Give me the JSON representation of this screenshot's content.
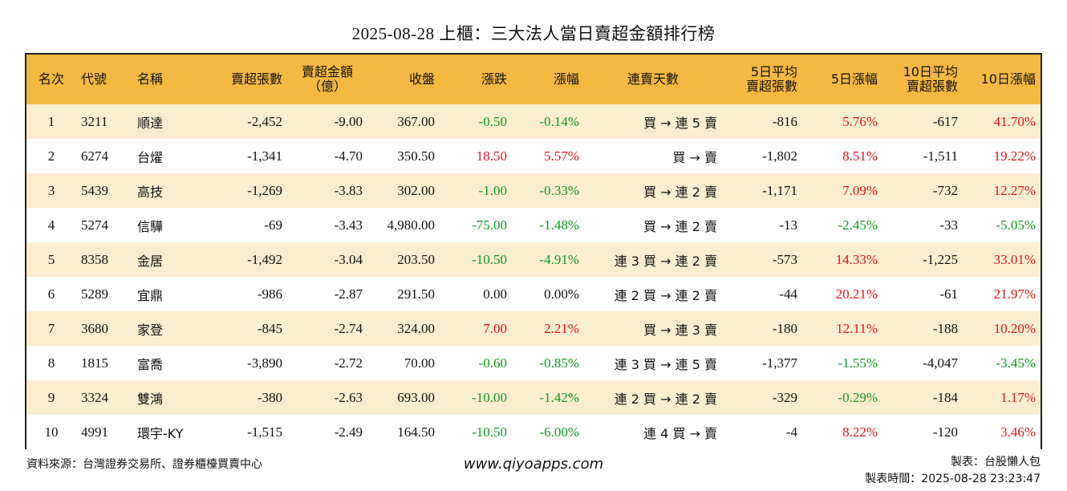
{
  "title": "2025-08-28 上櫃：三大法人當日賣超金額排行榜",
  "headers": {
    "rank": "名次",
    "code": "代號",
    "name": "名稱",
    "net_sell_shares": "賣超張數",
    "net_sell_amount_l1": "賣超金額",
    "net_sell_amount_l2": "（億）",
    "close": "收盤",
    "change": "漲跌",
    "change_pct": "漲幅",
    "streak": "連賣天數",
    "avg5_l1": "5日平均",
    "avg5_l2": "賣超張數",
    "pct5": "5日漲幅",
    "avg10_l1": "10日平均",
    "avg10_l2": "賣超張數",
    "pct10": "10日漲幅"
  },
  "colors": {
    "header_bg": "#f4b940",
    "stripe_bg": "#fbeecf",
    "up": "#e0141a",
    "down": "#0f9a1e"
  },
  "rows": [
    {
      "rank": "1",
      "code": "3211",
      "name": "順達",
      "shares": "-2,452",
      "amount": "-9.00",
      "close": "367.00",
      "change": "-0.50",
      "change_pct": "-0.14%",
      "streak": "買 → 連 5 賣",
      "avg5": "-816",
      "pct5": "5.76%",
      "avg10": "-617",
      "pct10": "41.70%"
    },
    {
      "rank": "2",
      "code": "6274",
      "name": "台燿",
      "shares": "-1,341",
      "amount": "-4.70",
      "close": "350.50",
      "change": "18.50",
      "change_pct": "5.57%",
      "streak": "買 → 賣",
      "avg5": "-1,802",
      "pct5": "8.51%",
      "avg10": "-1,511",
      "pct10": "19.22%"
    },
    {
      "rank": "3",
      "code": "5439",
      "name": "高技",
      "shares": "-1,269",
      "amount": "-3.83",
      "close": "302.00",
      "change": "-1.00",
      "change_pct": "-0.33%",
      "streak": "買 → 連 2 賣",
      "avg5": "-1,171",
      "pct5": "7.09%",
      "avg10": "-732",
      "pct10": "12.27%"
    },
    {
      "rank": "4",
      "code": "5274",
      "name": "信驊",
      "shares": "-69",
      "amount": "-3.43",
      "close": "4,980.00",
      "change": "-75.00",
      "change_pct": "-1.48%",
      "streak": "買 → 連 2 賣",
      "avg5": "-13",
      "pct5": "-2.45%",
      "avg10": "-33",
      "pct10": "-5.05%"
    },
    {
      "rank": "5",
      "code": "8358",
      "name": "金居",
      "shares": "-1,492",
      "amount": "-3.04",
      "close": "203.50",
      "change": "-10.50",
      "change_pct": "-4.91%",
      "streak": "連 3 買 → 連 2 賣",
      "avg5": "-573",
      "pct5": "14.33%",
      "avg10": "-1,225",
      "pct10": "33.01%"
    },
    {
      "rank": "6",
      "code": "5289",
      "name": "宜鼎",
      "shares": "-986",
      "amount": "-2.87",
      "close": "291.50",
      "change": "0.00",
      "change_pct": "0.00%",
      "streak": "連 2 買 → 連 2 賣",
      "avg5": "-44",
      "pct5": "20.21%",
      "avg10": "-61",
      "pct10": "21.97%"
    },
    {
      "rank": "7",
      "code": "3680",
      "name": "家登",
      "shares": "-845",
      "amount": "-2.74",
      "close": "324.00",
      "change": "7.00",
      "change_pct": "2.21%",
      "streak": "買 → 連 3 賣",
      "avg5": "-180",
      "pct5": "12.11%",
      "avg10": "-188",
      "pct10": "10.20%"
    },
    {
      "rank": "8",
      "code": "1815",
      "name": "富喬",
      "shares": "-3,890",
      "amount": "-2.72",
      "close": "70.00",
      "change": "-0.60",
      "change_pct": "-0.85%",
      "streak": "連 3 買 → 連 5 賣",
      "avg5": "-1,377",
      "pct5": "-1.55%",
      "avg10": "-4,047",
      "pct10": "-3.45%"
    },
    {
      "rank": "9",
      "code": "3324",
      "name": "雙鴻",
      "shares": "-380",
      "amount": "-2.63",
      "close": "693.00",
      "change": "-10.00",
      "change_pct": "-1.42%",
      "streak": "連 2 買 → 連 2 賣",
      "avg5": "-329",
      "pct5": "-0.29%",
      "avg10": "-184",
      "pct10": "1.17%"
    },
    {
      "rank": "10",
      "code": "4991",
      "name": "環宇-KY",
      "shares": "-1,515",
      "amount": "-2.49",
      "close": "164.50",
      "change": "-10.50",
      "change_pct": "-6.00%",
      "streak": "連 4 買 → 賣",
      "avg5": "-4",
      "pct5": "8.22%",
      "avg10": "-120",
      "pct10": "3.46%"
    }
  ],
  "footer": {
    "source": "資料來源：台灣證券交易所、證券櫃檯買賣中心",
    "website": "www.qiyoapps.com",
    "maker": "製表：台股懶人包",
    "made_time": "製表時間：2025-08-28 23:23:47"
  }
}
